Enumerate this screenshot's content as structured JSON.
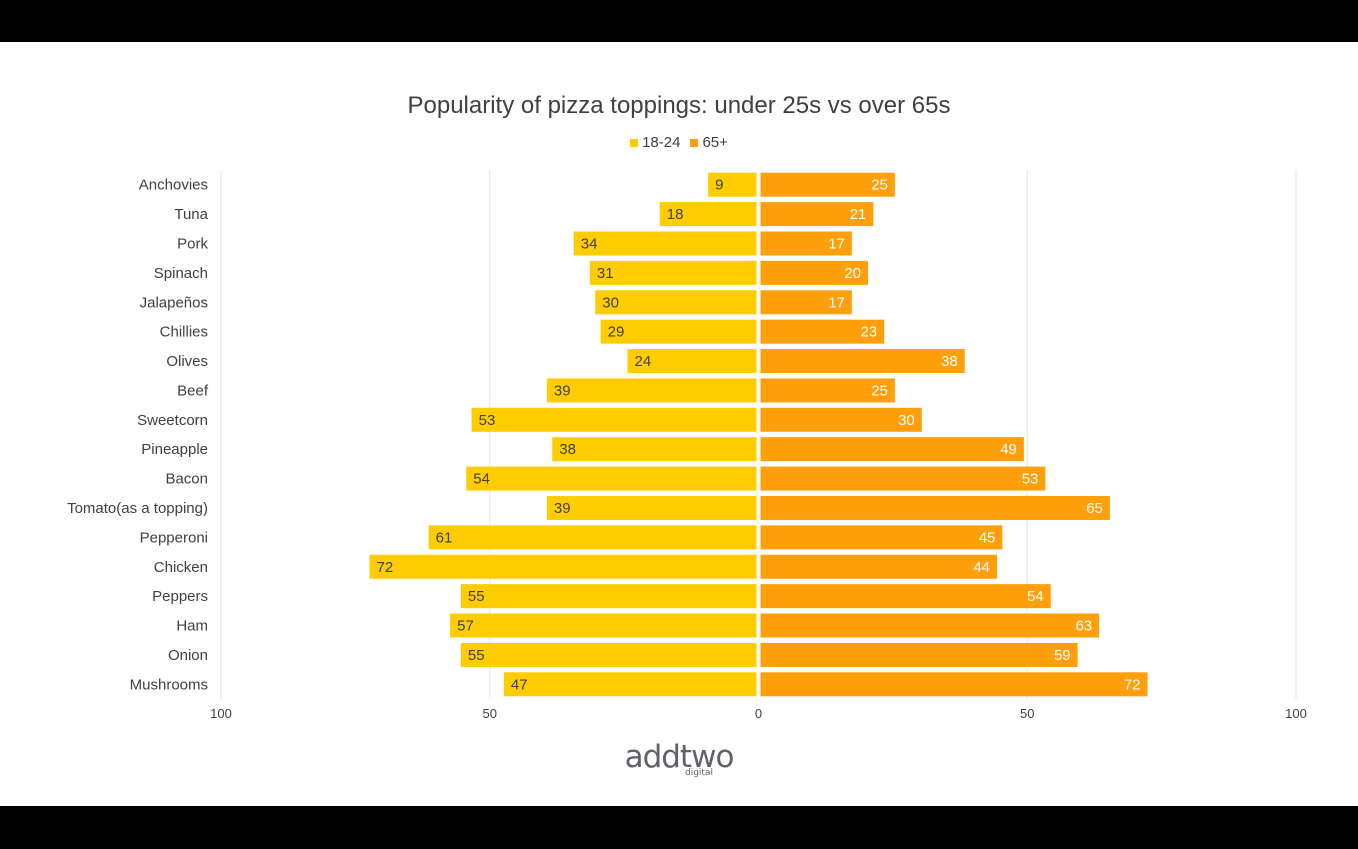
{
  "colors": {
    "under25": "#ffcc00",
    "over65": "#ff9f0b",
    "grid": "#e6e6e6",
    "text": "#404040",
    "background": "#ffffff",
    "frame": "#000000"
  },
  "chart_data": {
    "type": "bar",
    "orientation": "horizontal-diverging",
    "title": "Popularity of pizza toppings: under 25s vs over 65s",
    "categories": [
      "Anchovies",
      "Tuna",
      "Pork",
      "Spinach",
      "Jalapeños",
      "Chillies",
      "Olives",
      "Beef",
      "Sweetcorn",
      "Pineapple",
      "Bacon",
      "Tomato(as a topping)",
      "Pepperoni",
      "Chicken",
      "Peppers",
      "Ham",
      "Onion",
      "Mushrooms"
    ],
    "series": [
      {
        "name": "18-24",
        "side": "left",
        "values": [
          9,
          18,
          34,
          31,
          30,
          29,
          24,
          39,
          53,
          38,
          54,
          39,
          61,
          72,
          55,
          57,
          55,
          47
        ]
      },
      {
        "name": "65+",
        "side": "right",
        "values": [
          25,
          21,
          17,
          20,
          17,
          23,
          38,
          25,
          30,
          49,
          53,
          65,
          45,
          44,
          54,
          63,
          59,
          72
        ]
      }
    ],
    "xlim": [
      -100,
      100
    ],
    "x_tick_values": [
      -100,
      -50,
      0,
      50,
      100
    ],
    "x_tick_labels": [
      "100",
      "50",
      "0",
      "50",
      "100"
    ],
    "legend_position": "top-center",
    "grid": true
  },
  "logo": {
    "main": "addtwo",
    "sub": "digital"
  }
}
